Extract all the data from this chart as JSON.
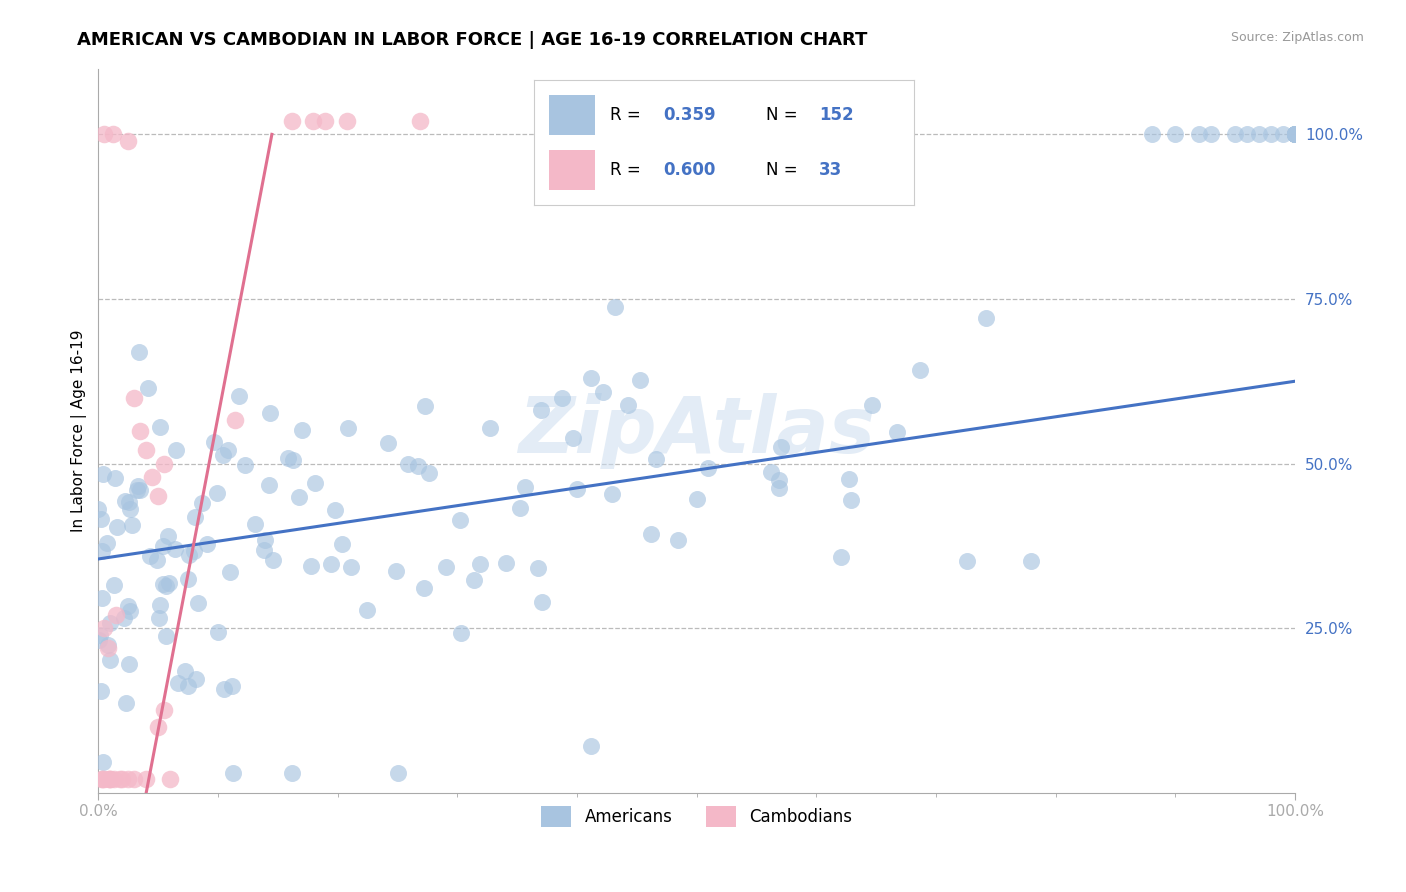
{
  "title": "AMERICAN VS CAMBODIAN IN LABOR FORCE | AGE 16-19 CORRELATION CHART",
  "source_text": "Source: ZipAtlas.com",
  "ylabel": "In Labor Force | Age 16-19",
  "xlim": [
    0.0,
    1.0
  ],
  "ylim": [
    0.0,
    1.1
  ],
  "xtick_positions": [
    0.0,
    1.0
  ],
  "xticklabels": [
    "0.0%",
    "100.0%"
  ],
  "ytick_positions": [
    0.25,
    0.5,
    0.75,
    1.0
  ],
  "yticklabels_right": [
    "25.0%",
    "50.0%",
    "75.0%",
    "100.0%"
  ],
  "blue_R": 0.359,
  "blue_N": 152,
  "pink_R": 0.6,
  "pink_N": 33,
  "blue_color": "#a8c4e0",
  "blue_line_color": "#4472c4",
  "pink_color": "#f4b8c8",
  "pink_line_color": "#e07090",
  "legend_label_american": "Americans",
  "legend_label_cambodian": "Cambodians",
  "watermark": "ZipAtlas",
  "title_fontsize": 13,
  "axis_label_fontsize": 11,
  "tick_fontsize": 11,
  "background_color": "#ffffff",
  "grid_color": "#bbbbbb",
  "blue_line_x0": 0.0,
  "blue_line_y0": 0.355,
  "blue_line_x1": 1.0,
  "blue_line_y1": 0.625,
  "pink_line_x0": 0.04,
  "pink_line_y0": 0.0,
  "pink_line_x1": 0.145,
  "pink_line_y1": 1.0
}
